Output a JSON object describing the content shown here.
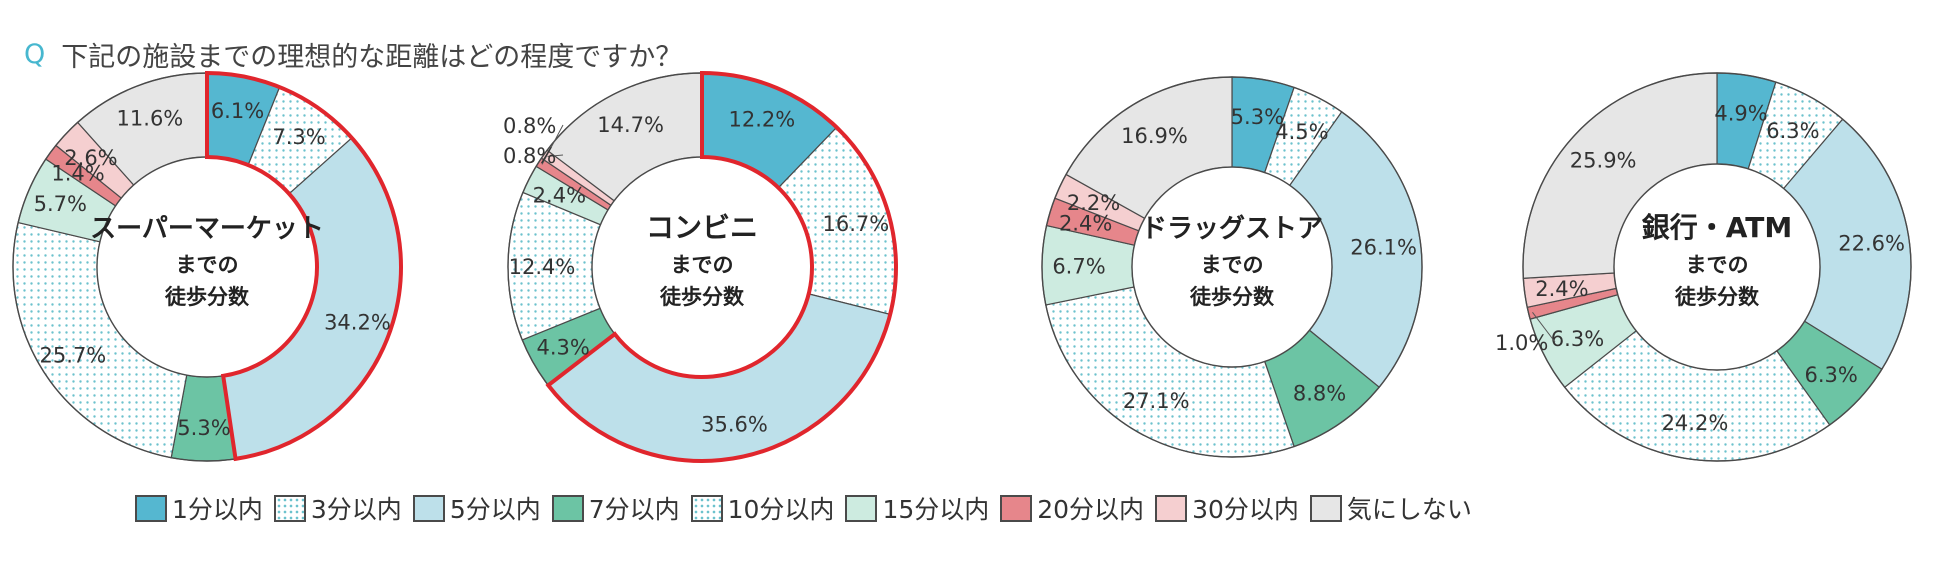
{
  "title": {
    "q": "Q",
    "text": "下記の施設までの理想的な距離はどの程度ですか？"
  },
  "colors": {
    "c1": "#55b7d0",
    "c3": "#ffffff",
    "c5": "#bde0ea",
    "c7": "#6cc4a4",
    "c10": "#ffffff",
    "c15": "#cdebe0",
    "c20": "#e6868b",
    "c30": "#f5cfd0",
    "cnone": "#e6e6e6",
    "dot": "#6cc2cd",
    "highlight": "#e0262d",
    "stroke": "#4a4a4a"
  },
  "legend": [
    {
      "key": "c1",
      "label": "1分以内",
      "dotted": false
    },
    {
      "key": "c3",
      "label": "3分以内",
      "dotted": true
    },
    {
      "key": "c5",
      "label": "5分以内",
      "dotted": false
    },
    {
      "key": "c7",
      "label": "7分以内",
      "dotted": false
    },
    {
      "key": "c10",
      "label": "10分以内",
      "dotted": true
    },
    {
      "key": "c15",
      "label": "15分以内",
      "dotted": false
    },
    {
      "key": "c20",
      "label": "20分以内",
      "dotted": false
    },
    {
      "key": "c30",
      "label": "30分以内",
      "dotted": false
    },
    {
      "key": "cnone",
      "label": "気にしない",
      "dotted": false
    }
  ],
  "chart_data": [
    {
      "type": "pie",
      "center_title": "スーパーマーケット",
      "center_sub1": "までの",
      "center_sub2": "徒歩分数",
      "highlight_categories": [
        "1分以内",
        "3分以内",
        "5分以内"
      ],
      "slices": [
        {
          "category": "1分以内",
          "value": 6.1,
          "label": "6.1%"
        },
        {
          "category": "3分以内",
          "value": 7.3,
          "label": "7.3%"
        },
        {
          "category": "5分以内",
          "value": 34.2,
          "label": "34.2%"
        },
        {
          "category": "7分以内",
          "value": 5.3,
          "label": "5.3%"
        },
        {
          "category": "10分以内",
          "value": 25.7,
          "label": "25.7%"
        },
        {
          "category": "15分以内",
          "value": 5.7,
          "label": "5.7%"
        },
        {
          "category": "20分以内",
          "value": 1.4,
          "label": "1.4%"
        },
        {
          "category": "30分以内",
          "value": 2.6,
          "label": "2.6%"
        },
        {
          "category": "気にしない",
          "value": 11.6,
          "label": "11.6%"
        }
      ]
    },
    {
      "type": "pie",
      "center_title": "コンビニ",
      "center_sub1": "までの",
      "center_sub2": "徒歩分数",
      "highlight_categories": [
        "1分以内",
        "3分以内",
        "5分以内"
      ],
      "slices": [
        {
          "category": "1分以内",
          "value": 12.2,
          "label": "12.2%"
        },
        {
          "category": "3分以内",
          "value": 16.7,
          "label": "16.7%"
        },
        {
          "category": "5分以内",
          "value": 35.6,
          "label": "35.6%"
        },
        {
          "category": "7分以内",
          "value": 4.3,
          "label": "4.3%"
        },
        {
          "category": "10分以内",
          "value": 12.4,
          "label": "12.4%"
        },
        {
          "category": "15分以内",
          "value": 2.4,
          "label": "2.4%"
        },
        {
          "category": "20分以内",
          "value": 0.8,
          "label": "0.8%"
        },
        {
          "category": "30分以内",
          "value": 0.8,
          "label": "0.8%"
        },
        {
          "category": "気にしない",
          "value": 14.7,
          "label": "14.7%"
        }
      ]
    },
    {
      "type": "pie",
      "center_title": "ドラッグストア",
      "center_sub1": "までの",
      "center_sub2": "徒歩分数",
      "highlight_categories": [],
      "slices": [
        {
          "category": "1分以内",
          "value": 5.3,
          "label": "5.3%"
        },
        {
          "category": "3分以内",
          "value": 4.5,
          "label": "4.5%"
        },
        {
          "category": "5分以内",
          "value": 26.1,
          "label": "26.1%"
        },
        {
          "category": "7分以内",
          "value": 8.8,
          "label": "8.8%"
        },
        {
          "category": "10分以内",
          "value": 27.1,
          "label": "27.1%"
        },
        {
          "category": "15分以内",
          "value": 6.7,
          "label": "6.7%"
        },
        {
          "category": "20分以内",
          "value": 2.4,
          "label": "2.4%"
        },
        {
          "category": "30分以内",
          "value": 2.2,
          "label": "2.2%"
        },
        {
          "category": "気にしない",
          "value": 16.9,
          "label": "16.9%"
        }
      ]
    },
    {
      "type": "pie",
      "center_title": "銀行・ATM",
      "center_sub1": "までの",
      "center_sub2": "徒歩分数",
      "highlight_categories": [],
      "slices": [
        {
          "category": "1分以内",
          "value": 4.9,
          "label": "4.9%"
        },
        {
          "category": "3分以内",
          "value": 6.3,
          "label": "6.3%"
        },
        {
          "category": "5分以内",
          "value": 22.6,
          "label": "22.6%"
        },
        {
          "category": "7分以内",
          "value": 6.3,
          "label": "6.3%"
        },
        {
          "category": "10分以内",
          "value": 24.2,
          "label": "24.2%"
        },
        {
          "category": "15分以内",
          "value": 6.3,
          "label": "6.3%"
        },
        {
          "category": "20分以内",
          "value": 1.0,
          "label": "1.0%"
        },
        {
          "category": "30分以内",
          "value": 2.4,
          "label": "2.4%"
        },
        {
          "category": "気にしない",
          "value": 25.9,
          "label": "25.9%"
        }
      ]
    }
  ]
}
